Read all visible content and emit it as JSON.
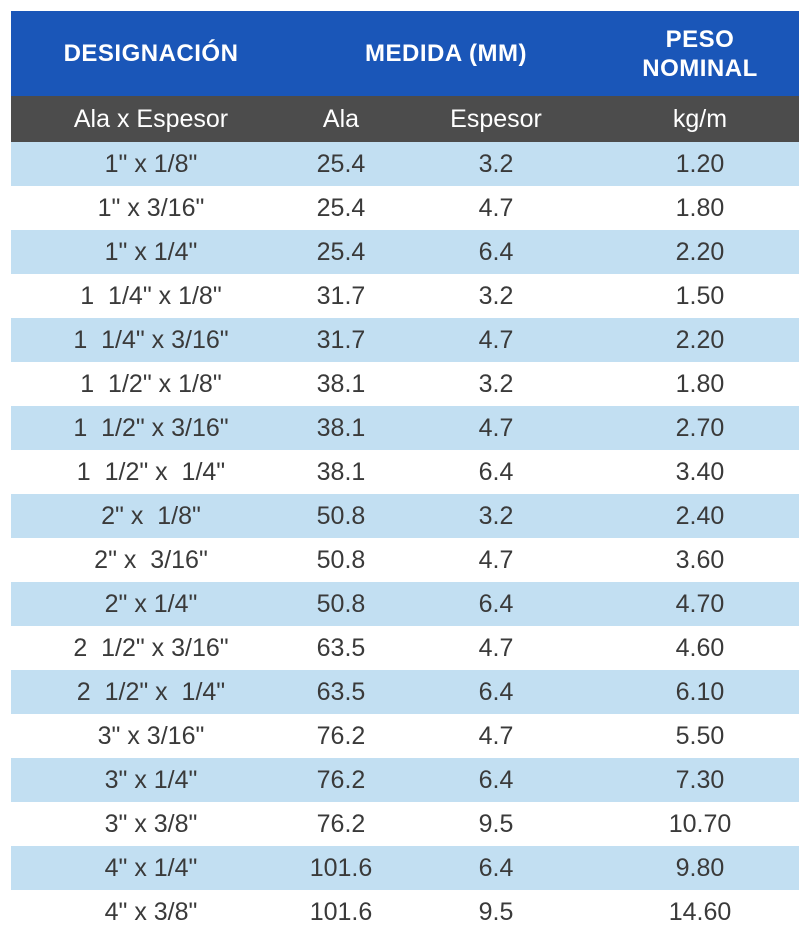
{
  "header": {
    "designacion": "DESIGNACIÓN",
    "medida": "MEDIDA (MM)",
    "peso_line1": "PESO",
    "peso_line2": "NOMINAL"
  },
  "subheader": {
    "col1": "Ala x Espesor",
    "col2": "Ala",
    "col3": "Espesor",
    "col4": "kg/m"
  },
  "colors": {
    "header_bg": "#1a56b8",
    "subheader_bg": "#4c4c4c",
    "stripe_bg": "#c2dff2"
  },
  "rows": [
    {
      "designacion": "1\" x 1/8\"",
      "ala": "25.4",
      "espesor": "3.2",
      "peso": "1.20"
    },
    {
      "designacion": "1\" x 3/16\"",
      "ala": "25.4",
      "espesor": "4.7",
      "peso": "1.80"
    },
    {
      "designacion": "1\" x 1/4\"",
      "ala": "25.4",
      "espesor": "6.4",
      "peso": "2.20"
    },
    {
      "designacion": "1  1/4\" x 1/8\"",
      "ala": "31.7",
      "espesor": "3.2",
      "peso": "1.50"
    },
    {
      "designacion": "1  1/4\" x 3/16\"",
      "ala": "31.7",
      "espesor": "4.7",
      "peso": "2.20"
    },
    {
      "designacion": "1  1/2\" x 1/8\"",
      "ala": "38.1",
      "espesor": "3.2",
      "peso": "1.80"
    },
    {
      "designacion": "1  1/2\" x 3/16\"",
      "ala": "38.1",
      "espesor": "4.7",
      "peso": "2.70"
    },
    {
      "designacion": "1  1/2\" x  1/4\"",
      "ala": "38.1",
      "espesor": "6.4",
      "peso": "3.40"
    },
    {
      "designacion": "2\" x  1/8\"",
      "ala": "50.8",
      "espesor": "3.2",
      "peso": "2.40"
    },
    {
      "designacion": "2\" x  3/16\"",
      "ala": "50.8",
      "espesor": "4.7",
      "peso": "3.60"
    },
    {
      "designacion": "2\" x 1/4\"",
      "ala": "50.8",
      "espesor": "6.4",
      "peso": "4.70"
    },
    {
      "designacion": "2  1/2\" x 3/16\"",
      "ala": "63.5",
      "espesor": "4.7",
      "peso": "4.60"
    },
    {
      "designacion": "2  1/2\" x  1/4\"",
      "ala": "63.5",
      "espesor": "6.4",
      "peso": "6.10"
    },
    {
      "designacion": "3\" x 3/16\"",
      "ala": "76.2",
      "espesor": "4.7",
      "peso": "5.50"
    },
    {
      "designacion": "3\" x 1/4\"",
      "ala": "76.2",
      "espesor": "6.4",
      "peso": "7.30"
    },
    {
      "designacion": "3\" x 3/8\"",
      "ala": "76.2",
      "espesor": "9.5",
      "peso": "10.70"
    },
    {
      "designacion": "4\" x 1/4\"",
      "ala": "101.6",
      "espesor": "6.4",
      "peso": "9.80"
    },
    {
      "designacion": "4\" x 3/8\"",
      "ala": "101.6",
      "espesor": "9.5",
      "peso": "14.60"
    }
  ]
}
